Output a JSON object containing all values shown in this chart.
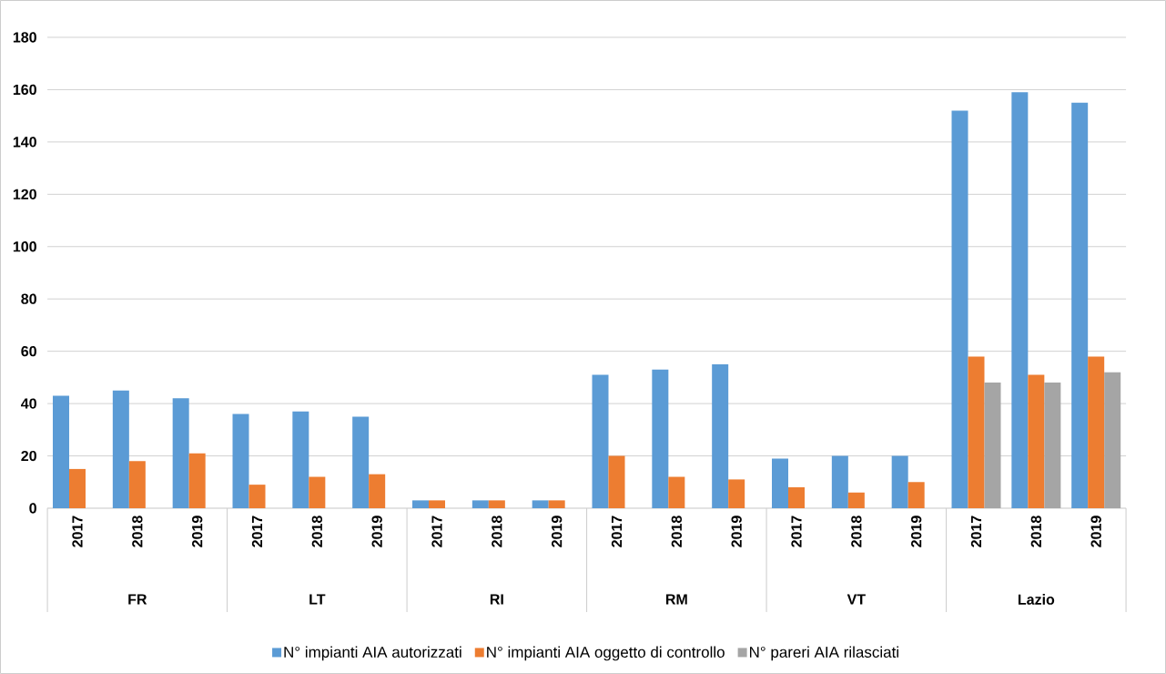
{
  "chart_data": {
    "type": "bar",
    "categories": [
      "2017",
      "2018",
      "2019",
      "2017",
      "2018",
      "2019",
      "2017",
      "2018",
      "2019",
      "2017",
      "2018",
      "2019",
      "2017",
      "2018",
      "2019",
      "2017",
      "2018",
      "2019"
    ],
    "series": [
      {
        "name": "N° impianti AIA autorizzati",
        "color": "#5b9bd5",
        "values": [
          43,
          45,
          42,
          36,
          37,
          35,
          3,
          3,
          3,
          51,
          53,
          55,
          19,
          20,
          20,
          152,
          159,
          155
        ]
      },
      {
        "name": "N° impianti AIA oggetto di controllo",
        "color": "#ed7d31",
        "values": [
          15,
          18,
          21,
          9,
          12,
          13,
          3,
          3,
          3,
          20,
          12,
          11,
          8,
          6,
          10,
          58,
          51,
          58
        ]
      },
      {
        "name": "N° pareri AIA rilasciati",
        "color": "#a5a5a5",
        "values": [
          null,
          null,
          null,
          null,
          null,
          null,
          null,
          null,
          null,
          null,
          null,
          null,
          null,
          null,
          null,
          48,
          48,
          52
        ]
      }
    ],
    "ylim": [
      0,
      180
    ],
    "yticks": [
      0,
      20,
      40,
      60,
      80,
      100,
      120,
      140,
      160,
      180
    ],
    "grid": "y",
    "legend": "bottom",
    "annotations": [
      "FR",
      "LT",
      "RI",
      "RM",
      "VT",
      "Lazio"
    ]
  }
}
